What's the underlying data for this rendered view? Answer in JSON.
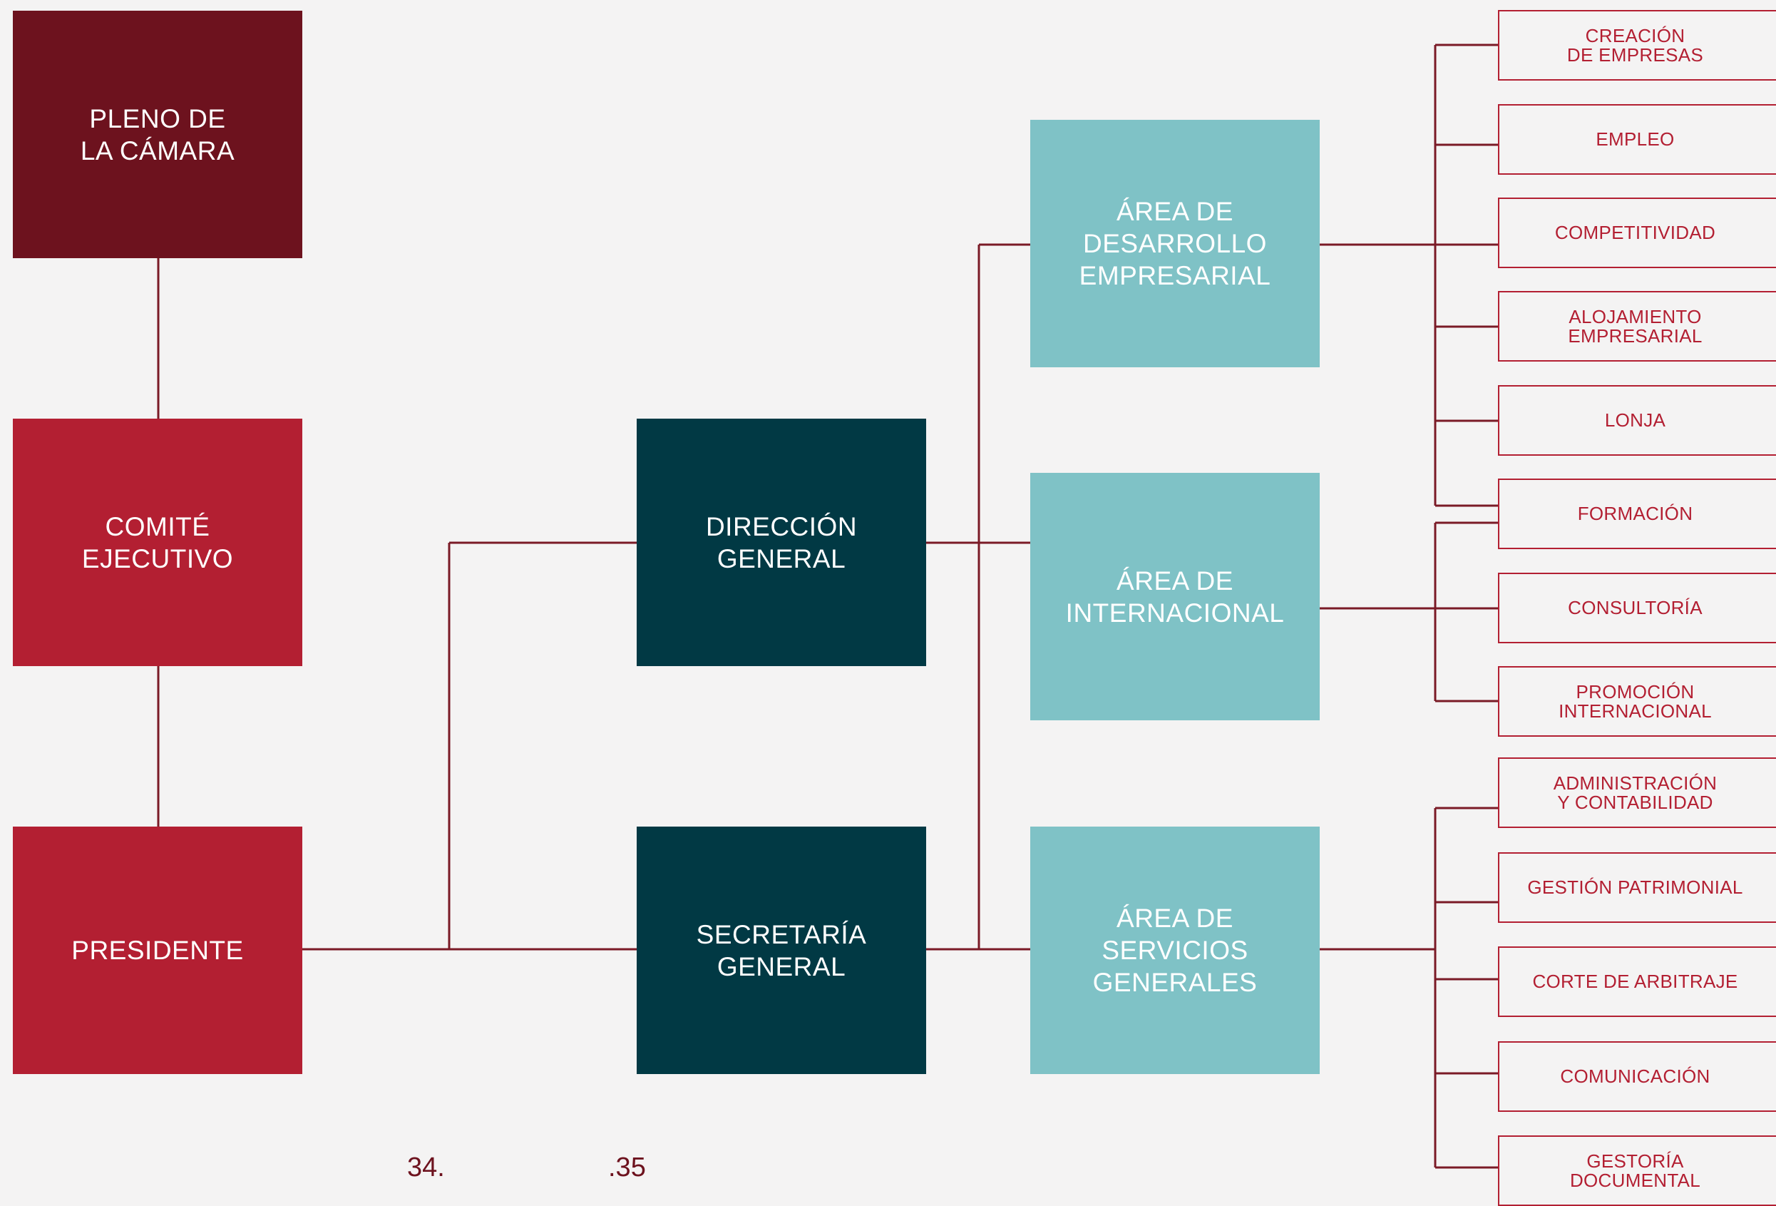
{
  "colors": {
    "background": "#f4f3f3",
    "governance_top": "#6d121e",
    "governance": "#b31f32",
    "management": "#013944",
    "areas": "#7fc2c6",
    "departments": "#b31f32",
    "connector": "#7a1a26"
  },
  "governance": {
    "pleno": "PLENO DE\nLA CÁMARA",
    "comite": "COMITÉ\nEJECUTIVO",
    "presidente": "PRESIDENTE"
  },
  "management": {
    "direccion": "DIRECCIÓN\nGENERAL",
    "secretaria": "SECRETARÍA\nGENERAL"
  },
  "areas": {
    "desarrollo": "ÁREA DE\nDESARROLLO\nEMPRESARIAL",
    "internacional": "ÁREA DE\nINTERNACIONAL",
    "servicios": "ÁREA DE\nSERVICIOS\nGENERALES"
  },
  "departments": [
    "CREACIÓN\nDE EMPRESAS",
    "EMPLEO",
    "COMPETITIVIDAD",
    "ALOJAMIENTO\nEMPRESARIAL",
    "LONJA",
    "FORMACIÓN",
    "CONSULTORÍA",
    "PROMOCIÓN\nINTERNACIONAL",
    "ADMINISTRACIÓN\nY CONTABILIDAD",
    "GESTIÓN PATRIMONIAL",
    "CORTE DE ARBITRAJE",
    "COMUNICACIÓN",
    "GESTORÍA\nDOCUMENTAL"
  ],
  "page_numbers": {
    "left": "34.",
    "right": ".35"
  }
}
